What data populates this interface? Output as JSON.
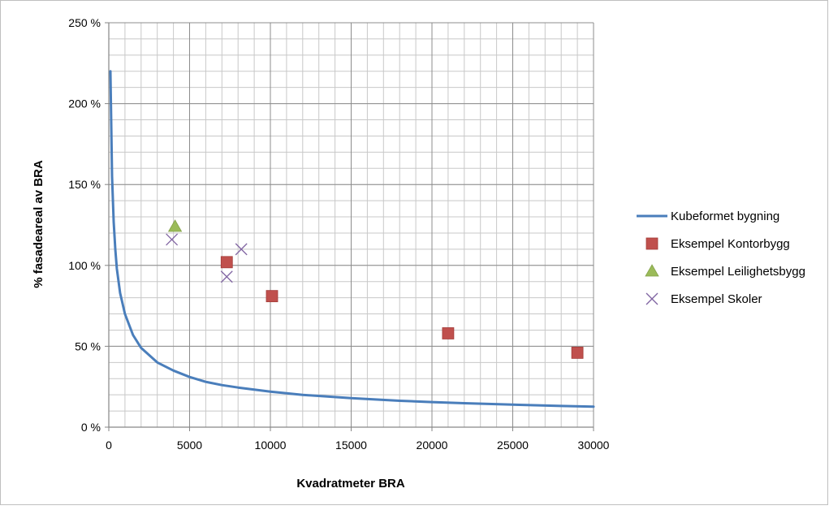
{
  "chart_data": {
    "type": "scatter",
    "title": "",
    "xlabel": "Kvadratmeter BRA",
    "ylabel": "% fasadeareal av BRA",
    "xlim": [
      0,
      30000
    ],
    "ylim": [
      0,
      250
    ],
    "x_ticks": [
      0,
      5000,
      10000,
      15000,
      20000,
      25000,
      30000
    ],
    "x_tick_labels": [
      "0",
      "5000",
      "10000",
      "15000",
      "20000",
      "25000",
      "30000"
    ],
    "y_ticks": [
      0,
      50,
      100,
      150,
      200,
      250
    ],
    "y_tick_labels": [
      "0 %",
      "50 %",
      "100 %",
      "150 %",
      "200 %",
      "250 %"
    ],
    "grid": true,
    "legend_position": "right",
    "series": [
      {
        "name": "Kubeformet bygning",
        "kind": "line",
        "color": "#4a7ebb",
        "x": [
          100,
          200,
          300,
          400,
          500,
          700,
          1000,
          1500,
          2000,
          3000,
          4000,
          5000,
          6000,
          7000,
          8000,
          10000,
          12000,
          15000,
          18000,
          20000,
          22000,
          25000,
          28000,
          30000
        ],
        "y": [
          220,
          155,
          127,
          110,
          98,
          83,
          70,
          57,
          49,
          40,
          35,
          31,
          28,
          26,
          24.5,
          22,
          20,
          17.9,
          16.3,
          15.5,
          14.8,
          13.9,
          13.1,
          12.7
        ]
      },
      {
        "name": "Eksempel Kontorbygg",
        "kind": "marker",
        "marker": "square",
        "color": "#c0504d",
        "x": [
          7300,
          10100,
          21000,
          29000
        ],
        "y": [
          102,
          81,
          58,
          46
        ]
      },
      {
        "name": "Eksempel Leilighetsbygg",
        "kind": "marker",
        "marker": "triangle",
        "color": "#9bbb59",
        "x": [
          4100
        ],
        "y": [
          124
        ]
      },
      {
        "name": "Eksempel Skoler",
        "kind": "marker",
        "marker": "x",
        "color": "#8064a2",
        "x": [
          3900,
          7300,
          8200
        ],
        "y": [
          116,
          93,
          110
        ]
      }
    ]
  }
}
